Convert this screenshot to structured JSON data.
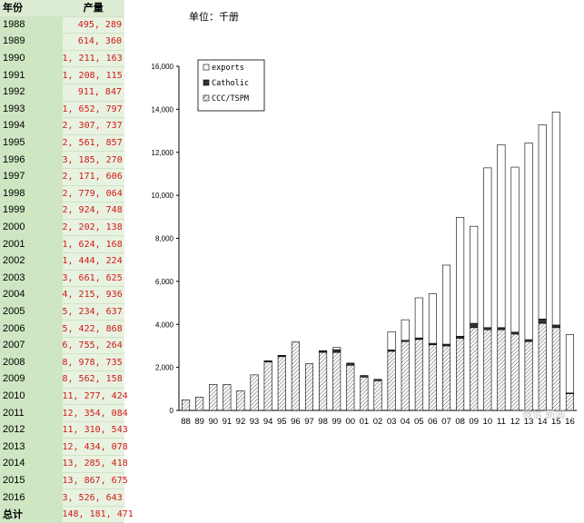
{
  "table": {
    "header_year": "年份",
    "header_value": "产量",
    "rows": [
      {
        "year": "1988",
        "value": "495, 289"
      },
      {
        "year": "1989",
        "value": "614, 360"
      },
      {
        "year": "1990",
        "value": "1, 211, 163"
      },
      {
        "year": "1991",
        "value": "1, 208, 115"
      },
      {
        "year": "1992",
        "value": "911, 847"
      },
      {
        "year": "1993",
        "value": "1, 652, 797"
      },
      {
        "year": "1994",
        "value": "2, 307, 737"
      },
      {
        "year": "1995",
        "value": "2, 561, 857"
      },
      {
        "year": "1996",
        "value": "3, 185, 270"
      },
      {
        "year": "1997",
        "value": "2, 171, 606"
      },
      {
        "year": "1998",
        "value": "2, 779, 064"
      },
      {
        "year": "1999",
        "value": "2, 924, 748"
      },
      {
        "year": "2000",
        "value": "2, 202, 138"
      },
      {
        "year": "2001",
        "value": "1, 624, 168"
      },
      {
        "year": "2002",
        "value": "1, 444, 224"
      },
      {
        "year": "2003",
        "value": "3, 661, 625"
      },
      {
        "year": "2004",
        "value": "4, 215, 936"
      },
      {
        "year": "2005",
        "value": "5, 234, 637"
      },
      {
        "year": "2006",
        "value": "5, 422, 868"
      },
      {
        "year": "2007",
        "value": "6, 755, 264"
      },
      {
        "year": "2008",
        "value": "8, 978, 735"
      },
      {
        "year": "2009",
        "value": "8, 562, 158"
      },
      {
        "year": "2010",
        "value": "11, 277, 424"
      },
      {
        "year": "2011",
        "value": "12, 354, 084"
      },
      {
        "year": "2012",
        "value": "11, 310, 543"
      },
      {
        "year": "2013",
        "value": "12, 434, 078"
      },
      {
        "year": "2014",
        "value": "13, 285, 418"
      },
      {
        "year": "2015",
        "value": "13, 867, 675"
      },
      {
        "year": "2016",
        "value": "3, 526, 643"
      },
      {
        "year": "总计",
        "value": "148, 181, 471"
      }
    ]
  },
  "unit_label": "单位：千册",
  "watermark": "微信 新闻",
  "colors": {
    "table_year_bg": "#cfe6c2",
    "table_value_bg": "#e8f2e0",
    "value_text": "#d01818"
  },
  "chart_data": {
    "type": "bar",
    "stacked": true,
    "categories": [
      "88",
      "89",
      "90",
      "91",
      "92",
      "93",
      "94",
      "95",
      "96",
      "97",
      "98",
      "99",
      "00",
      "01",
      "02",
      "03",
      "04",
      "05",
      "06",
      "07",
      "08",
      "09",
      "10",
      "11",
      "12",
      "13",
      "14",
      "15",
      "16"
    ],
    "yticks": [
      "0",
      "2,000",
      "4,000",
      "6,000",
      "8,000",
      "10,000",
      "12,000",
      "14,000",
      "16,000"
    ],
    "ylim": [
      0,
      16000
    ],
    "grid": false,
    "legend_position": "top-left",
    "series": [
      {
        "name": "CCC/TSPM",
        "fill": "hatch",
        "values": [
          495,
          614,
          1211,
          1208,
          912,
          1653,
          2250,
          2500,
          3185,
          2172,
          2700,
          2700,
          2100,
          1550,
          1380,
          2750,
          3200,
          3300,
          3050,
          3000,
          3350,
          3850,
          3750,
          3750,
          3550,
          3200,
          4050,
          3850,
          780
        ]
      },
      {
        "name": "Catholic",
        "fill": "dark",
        "values": [
          0,
          0,
          0,
          0,
          0,
          0,
          58,
          62,
          0,
          0,
          79,
          125,
          102,
          74,
          64,
          60,
          60,
          70,
          70,
          80,
          100,
          200,
          100,
          100,
          90,
          90,
          200,
          120,
          30
        ]
      },
      {
        "name": "exports",
        "fill": "white",
        "values": [
          0,
          0,
          0,
          0,
          0,
          0,
          0,
          0,
          0,
          0,
          0,
          100,
          0,
          0,
          0,
          852,
          956,
          1865,
          2303,
          3675,
          5529,
          4512,
          7427,
          8504,
          7671,
          9144,
          9035,
          9898,
          2717
        ]
      }
    ]
  }
}
